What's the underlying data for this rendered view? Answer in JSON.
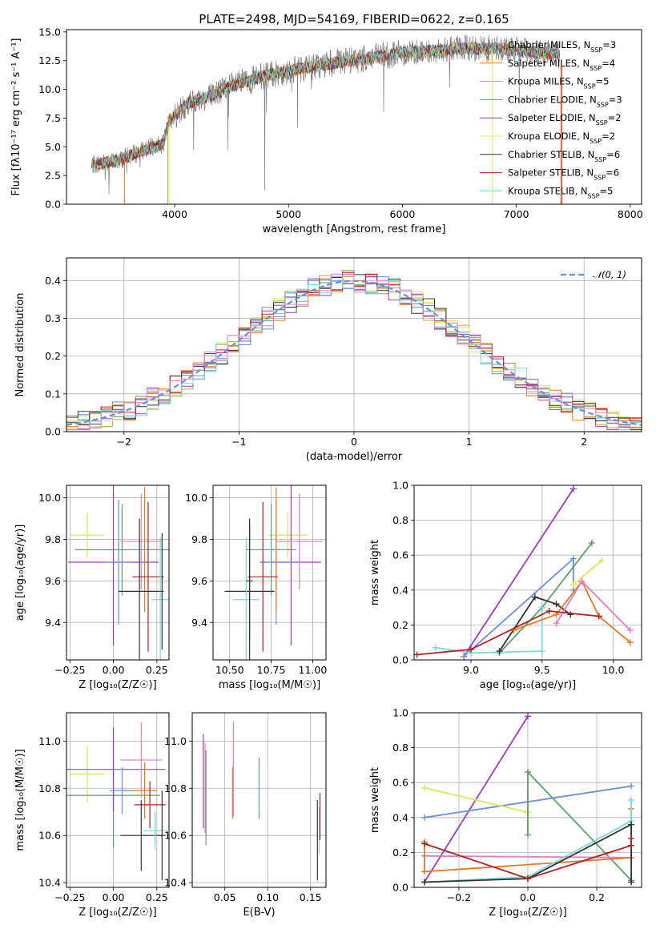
{
  "colors": [
    "#6a8ed8",
    "#e07b25",
    "#c8a838",
    "#5f9e6e",
    "#9b3dbd",
    "#d9e85a",
    "#333333",
    "#b02020",
    "#7fd7d7",
    "#e07fbf",
    "#808080"
  ],
  "chart_data": [
    {
      "id": "spectrum",
      "type": "line",
      "title": "PLATE=2498, MJD=54169, FIBERID=0622, z=0.165",
      "xlabel": "wavelength [Angstrom, rest frame]",
      "ylabel": "Flux [fλ10⁻¹⁷ erg cm⁻² s⁻¹ A⁻¹]",
      "xlim": [
        3050,
        8100
      ],
      "ylim": [
        0,
        15.2
      ],
      "xticks": [
        4000,
        5000,
        6000,
        7000,
        8000
      ],
      "yticks": [
        0.0,
        2.5,
        5.0,
        7.5,
        10.0,
        12.5,
        15.0
      ],
      "legend_position": "top-right",
      "legend": [
        "Chabrier MILES, N_SSP=3",
        "Salpeter MILES, N_SSP=4",
        "Kroupa MILES, N_SSP=5",
        "Chabrier ELODIE, N_SSP=3",
        "Salpeter ELODIE, N_SSP=2",
        "Kroupa ELODIE, N_SSP=2",
        "Chabrier STELIB, N_SSP=6",
        "Salpeter STELIB, N_SSP=6",
        "Kroupa STELIB, N_SSP=5"
      ],
      "continuum": [
        [
          3270,
          3.4
        ],
        [
          3500,
          3.8
        ],
        [
          3700,
          4.6
        ],
        [
          3900,
          5.3
        ],
        [
          3950,
          7.2
        ],
        [
          4100,
          8.7
        ],
        [
          4300,
          9.4
        ],
        [
          4500,
          10.3
        ],
        [
          4800,
          11.2
        ],
        [
          5100,
          11.8
        ],
        [
          5400,
          12.3
        ],
        [
          5700,
          12.7
        ],
        [
          6000,
          13.2
        ],
        [
          6300,
          13.4
        ],
        [
          6600,
          13.6
        ],
        [
          6900,
          13.5
        ],
        [
          7200,
          13.2
        ],
        [
          7380,
          13.0
        ]
      ]
    },
    {
      "id": "residuals",
      "type": "line",
      "xlabel": "(data-model)/error",
      "ylabel": "Normed distribution",
      "xlim": [
        -2.5,
        2.5
      ],
      "ylim": [
        0,
        0.46
      ],
      "xticks": [
        -2,
        -1,
        0,
        1,
        2
      ],
      "yticks": [
        0.0,
        0.1,
        0.2,
        0.3,
        0.4
      ],
      "legend": [
        "𝒩(0, 1)"
      ],
      "legend_position": "top-right"
    },
    {
      "id": "age-vs-Z",
      "type": "scatter",
      "xlabel": "Z [log₁₀(Z/Z☉)]",
      "ylabel": "age  [log₁₀(age/yr)]",
      "xlim": [
        -0.27,
        0.32
      ],
      "ylim": [
        9.22,
        10.06
      ],
      "xticks": [
        -0.25,
        0.0,
        0.25
      ],
      "yticks": [
        9.4,
        9.6,
        9.8,
        10.0
      ],
      "points": [
        {
          "x": -0.15,
          "y": 9.82,
          "xerr": 0.1,
          "yerr": 0.11,
          "c": 5
        },
        {
          "x": 0.05,
          "y": 9.75,
          "xerr": 0.27,
          "yerr": 0.22,
          "c": 3
        },
        {
          "x": 0.0,
          "y": 9.69,
          "xerr": 0.26,
          "yerr": 0.4,
          "c": 4
        },
        {
          "x": 0.03,
          "y": 9.69,
          "xerr": 0.08,
          "yerr": 0.3,
          "c": 0
        },
        {
          "x": 0.16,
          "y": 9.79,
          "xerr": 0.12,
          "yerr": 0.23,
          "c": 9
        },
        {
          "x": 0.18,
          "y": 9.75,
          "xerr": 0.07,
          "yerr": 0.3,
          "c": 1
        },
        {
          "x": 0.2,
          "y": 9.62,
          "xerr": 0.09,
          "yerr": 0.36,
          "c": 7
        },
        {
          "x": 0.15,
          "y": 9.55,
          "xerr": 0.12,
          "yerr": 0.35,
          "c": 6
        },
        {
          "x": 0.27,
          "y": 9.51,
          "xerr": 0.05,
          "yerr": 0.3,
          "c": 8
        },
        {
          "x": 0.28,
          "y": 9.55,
          "xerr": 0.01,
          "yerr": 0.28,
          "c": 6
        }
      ]
    },
    {
      "id": "age-vs-mass",
      "type": "scatter",
      "xlabel": "mass [log₁₀(M/M☉)]",
      "ylabel": "",
      "xlim": [
        10.4,
        11.08
      ],
      "ylim": [
        9.22,
        10.06
      ],
      "xticks": [
        10.5,
        10.75,
        11.0
      ],
      "yticks": [
        9.4,
        9.6,
        9.8,
        10.0
      ],
      "points": [
        {
          "x": 10.85,
          "y": 9.82,
          "xerr": 0.12,
          "yerr": 0.11,
          "c": 5
        },
        {
          "x": 10.75,
          "y": 9.75,
          "xerr": 0.15,
          "yerr": 0.22,
          "c": 3
        },
        {
          "x": 10.87,
          "y": 9.69,
          "xerr": 0.18,
          "yerr": 0.4,
          "c": 4
        },
        {
          "x": 10.78,
          "y": 9.69,
          "xerr": 0.1,
          "yerr": 0.3,
          "c": 0
        },
        {
          "x": 10.92,
          "y": 9.79,
          "xerr": 0.14,
          "yerr": 0.23,
          "c": 9
        },
        {
          "x": 10.78,
          "y": 9.75,
          "xerr": 0.08,
          "yerr": 0.3,
          "c": 1
        },
        {
          "x": 10.7,
          "y": 9.62,
          "xerr": 0.09,
          "yerr": 0.36,
          "c": 7
        },
        {
          "x": 10.62,
          "y": 9.55,
          "xerr": 0.15,
          "yerr": 0.35,
          "c": 6
        },
        {
          "x": 10.6,
          "y": 9.51,
          "xerr": 0.08,
          "yerr": 0.3,
          "c": 8
        },
        {
          "x": 10.62,
          "y": 9.6,
          "xerr": 0.02,
          "yerr": 0.28,
          "c": 6
        }
      ]
    },
    {
      "id": "weight-vs-age",
      "type": "line",
      "xlabel": "age  [log₁₀(age/yr)]",
      "ylabel": "mass weight",
      "xlim": [
        8.6,
        10.2
      ],
      "ylim": [
        0,
        1
      ],
      "xticks": [
        9.0,
        9.5,
        10.0
      ],
      "yticks": [
        0.0,
        0.2,
        0.4,
        0.6,
        0.8,
        1.0
      ],
      "series": [
        {
          "c": 4,
          "x": [
            8.95,
            9.72
          ],
          "y": [
            0.02,
            0.98
          ]
        },
        {
          "c": 0,
          "x": [
            8.95,
            9.72,
            9.72
          ],
          "y": [
            0.02,
            0.58,
            0.4
          ]
        },
        {
          "c": 3,
          "x": [
            9.2,
            9.5,
            9.85
          ],
          "y": [
            0.04,
            0.3,
            0.67
          ]
        },
        {
          "c": 5,
          "x": [
            9.72,
            9.92,
            9.72
          ],
          "y": [
            0.43,
            0.57,
            0.43
          ]
        },
        {
          "c": 8,
          "x": [
            8.75,
            9.0,
            9.5,
            9.5
          ],
          "y": [
            0.07,
            0.04,
            0.05,
            0.3
          ]
        },
        {
          "c": 6,
          "x": [
            9.2,
            9.45,
            9.6,
            9.7
          ],
          "y": [
            0.05,
            0.36,
            0.32,
            0.26
          ]
        },
        {
          "c": 1,
          "x": [
            9.3,
            9.6,
            9.78,
            9.9,
            10.12
          ],
          "y": [
            0.17,
            0.26,
            0.45,
            0.25,
            0.1
          ]
        },
        {
          "c": 9,
          "x": [
            9.6,
            9.78,
            10.12
          ],
          "y": [
            0.21,
            0.45,
            0.17
          ]
        },
        {
          "c": 7,
          "x": [
            8.62,
            9.0,
            9.55,
            9.9
          ],
          "y": [
            0.03,
            0.06,
            0.28,
            0.25
          ]
        }
      ]
    },
    {
      "id": "mass-vs-Z",
      "type": "scatter",
      "xlabel": "Z [log₁₀(Z/Z☉)]",
      "ylabel": "mass [log₁₀(M/M☉)]",
      "xlim": [
        -0.27,
        0.32
      ],
      "ylim": [
        10.38,
        11.12
      ],
      "xticks": [
        -0.25,
        0.0,
        0.25
      ],
      "yticks": [
        10.4,
        10.6,
        10.8,
        11.0
      ],
      "points": [
        {
          "x": -0.15,
          "y": 10.86,
          "xerr": 0.1,
          "yerr": 0.12,
          "c": 5
        },
        {
          "x": 0.0,
          "y": 10.77,
          "xerr": 0.27,
          "yerr": 0.22,
          "c": 3
        },
        {
          "x": 0.0,
          "y": 10.88,
          "xerr": 0.3,
          "yerr": 0.18,
          "c": 4
        },
        {
          "x": 0.05,
          "y": 10.79,
          "xerr": 0.07,
          "yerr": 0.1,
          "c": 0
        },
        {
          "x": 0.16,
          "y": 10.92,
          "xerr": 0.12,
          "yerr": 0.16,
          "c": 9
        },
        {
          "x": 0.18,
          "y": 10.79,
          "xerr": 0.07,
          "yerr": 0.12,
          "c": 1
        },
        {
          "x": 0.21,
          "y": 10.73,
          "xerr": 0.09,
          "yerr": 0.1,
          "c": 7
        },
        {
          "x": 0.16,
          "y": 10.6,
          "xerr": 0.12,
          "yerr": 0.15,
          "c": 6
        },
        {
          "x": 0.24,
          "y": 10.62,
          "xerr": 0.07,
          "yerr": 0.08,
          "c": 8
        },
        {
          "x": 0.28,
          "y": 10.6,
          "xerr": 0.02,
          "yerr": 0.19,
          "c": 6
        }
      ]
    },
    {
      "id": "mass-vs-ebv",
      "type": "scatter",
      "xlabel": "E(B-V)",
      "ylabel": "",
      "xlim": [
        0.012,
        0.168
      ],
      "ylim": [
        10.38,
        11.12
      ],
      "xticks": [
        0.05,
        0.1,
        0.15
      ],
      "yticks": [
        10.4,
        10.6,
        10.8,
        11.0
      ],
      "points": [
        {
          "x": 0.025,
          "y": 10.83,
          "yerr": 0.2,
          "c": 4
        },
        {
          "x": 0.027,
          "y": 10.8,
          "yerr": 0.19,
          "c": 9
        },
        {
          "x": 0.028,
          "y": 10.76,
          "yerr": 0.2,
          "c": 3
        },
        {
          "x": 0.06,
          "y": 10.88,
          "yerr": 0.2,
          "c": 9
        },
        {
          "x": 0.059,
          "y": 10.78,
          "yerr": 0.11,
          "c": 1
        },
        {
          "x": 0.09,
          "y": 10.8,
          "yerr": 0.13,
          "c": 0
        },
        {
          "x": 0.158,
          "y": 10.58,
          "yerr": 0.17,
          "c": 6
        },
        {
          "x": 0.16,
          "y": 10.62,
          "yerr": 0.1,
          "c": 8
        },
        {
          "x": 0.161,
          "y": 10.68,
          "yerr": 0.1,
          "c": 7
        }
      ]
    },
    {
      "id": "weight-vs-Z",
      "type": "line",
      "xlabel": "Z [log₁₀(Z/Z☉)]",
      "ylabel": "mass weight",
      "xlim": [
        -0.33,
        0.33
      ],
      "ylim": [
        0,
        1
      ],
      "xticks": [
        -0.2,
        0.0,
        0.2
      ],
      "yticks": [
        0.0,
        0.2,
        0.4,
        0.6,
        0.8,
        1.0
      ],
      "series": [
        {
          "c": 4,
          "x": [
            -0.3,
            0.0
          ],
          "y": [
            0.03,
            0.98
          ]
        },
        {
          "c": 0,
          "x": [
            -0.3,
            0.3
          ],
          "y": [
            0.4,
            0.58
          ]
        },
        {
          "c": 5,
          "x": [
            -0.3,
            0.0
          ],
          "y": [
            0.57,
            0.43
          ]
        },
        {
          "c": 3,
          "x": [
            0.0,
            0.0,
            0.3
          ],
          "y": [
            0.3,
            0.66,
            0.04
          ]
        },
        {
          "c": 9,
          "x": [
            -0.3,
            0.3
          ],
          "y": [
            0.18,
            0.17
          ]
        },
        {
          "c": 1,
          "x": [
            -0.3,
            -0.3,
            0.3,
            0.3
          ],
          "y": [
            0.26,
            0.09,
            0.17,
            0.45
          ]
        },
        {
          "c": 8,
          "x": [
            -0.3,
            0.0,
            0.3,
            0.3
          ],
          "y": [
            0.03,
            0.06,
            0.38,
            0.5
          ]
        },
        {
          "c": 6,
          "x": [
            -0.3,
            0.0,
            0.3,
            0.3
          ],
          "y": [
            0.03,
            0.05,
            0.36,
            0.03
          ]
        },
        {
          "c": 7,
          "x": [
            -0.3,
            0.0,
            0.3,
            0.3
          ],
          "y": [
            0.25,
            0.05,
            0.24,
            0.28
          ]
        }
      ]
    }
  ]
}
